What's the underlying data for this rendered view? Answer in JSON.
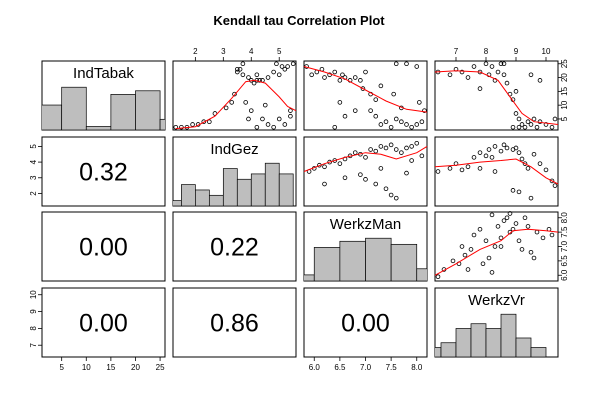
{
  "chart_data": {
    "type": "scatter-matrix",
    "title": "Kendall tau Correlation Plot",
    "variables": [
      {
        "name": "IndTabak",
        "range": [
          1,
          26
        ],
        "ticks": [
          5,
          10,
          15,
          20,
          25
        ],
        "hist": {
          "breaks": [
            0,
            5,
            10,
            15,
            20,
            25,
            30
          ],
          "counts": [
            7,
            12,
            1,
            10,
            11,
            3
          ]
        }
      },
      {
        "name": "IndGez",
        "range": [
          1.2,
          5.6
        ],
        "ticks": [
          2,
          3,
          4,
          5
        ],
        "hist": {
          "breaks": [
            1,
            1.5,
            2,
            2.5,
            3,
            3.5,
            4,
            4.5,
            5,
            5.5,
            6
          ],
          "counts": [
            1,
            4,
            3,
            2,
            7,
            5,
            6,
            8,
            6,
            0
          ]
        }
      },
      {
        "name": "WerkzMan",
        "range": [
          5.8,
          8.2
        ],
        "ticks": [
          6.0,
          6.5,
          7.0,
          7.5,
          8.0
        ],
        "tick_labels": [
          "6.0",
          "6.5",
          "7.0",
          "7.5",
          "8.0"
        ],
        "hist": {
          "breaks": [
            5.5,
            6,
            6.5,
            7,
            7.5,
            8,
            8.5
          ],
          "counts": [
            2,
            11,
            13,
            14,
            12,
            4
          ]
        }
      },
      {
        "name": "WerkzVr",
        "range": [
          6.3,
          10.4
        ],
        "ticks": [
          7,
          8,
          9,
          10
        ],
        "hist": {
          "breaks": [
            6,
            6.5,
            7,
            7.5,
            8,
            8.5,
            9,
            9.5,
            10,
            10.5
          ],
          "counts": [
            2,
            3,
            6,
            7,
            6,
            9,
            4,
            2,
            0
          ]
        }
      }
    ],
    "correlations": [
      {
        "row": 1,
        "col": 0,
        "label": "0.32"
      },
      {
        "row": 2,
        "col": 0,
        "label": "0.00"
      },
      {
        "row": 2,
        "col": 1,
        "label": "0.22"
      },
      {
        "row": 3,
        "col": 0,
        "label": "0.00"
      },
      {
        "row": 3,
        "col": 1,
        "label": "0.86"
      },
      {
        "row": 3,
        "col": 2,
        "label": "0.00"
      }
    ],
    "scatter_panels": [
      {
        "row": 0,
        "col": 1,
        "xvar": "IndGez",
        "yvar": "IndTabak",
        "points": [
          [
            1.3,
            2
          ],
          [
            1.5,
            2
          ],
          [
            1.7,
            2
          ],
          [
            1.9,
            3
          ],
          [
            2.1,
            3
          ],
          [
            2.3,
            4
          ],
          [
            2.5,
            4
          ],
          [
            2.7,
            7
          ],
          [
            3.1,
            9
          ],
          [
            3.3,
            11
          ],
          [
            3.4,
            14
          ],
          [
            3.5,
            22
          ],
          [
            3.5,
            23
          ],
          [
            3.6,
            23
          ],
          [
            3.7,
            21
          ],
          [
            3.7,
            25
          ],
          [
            3.9,
            20
          ],
          [
            4.0,
            19
          ],
          [
            4.1,
            18
          ],
          [
            4.2,
            19
          ],
          [
            4.2,
            21
          ],
          [
            4.3,
            19
          ],
          [
            4.4,
            19
          ],
          [
            4.6,
            20
          ],
          [
            4.8,
            22
          ],
          [
            4.9,
            25
          ],
          [
            5.0,
            21
          ],
          [
            5.1,
            24
          ],
          [
            5.2,
            23
          ],
          [
            5.3,
            24
          ],
          [
            5.4,
            6
          ],
          [
            5.4,
            8
          ],
          [
            4.2,
            2
          ],
          [
            4.4,
            5
          ],
          [
            4.6,
            3
          ],
          [
            4.8,
            2
          ],
          [
            4.0,
            8
          ],
          [
            3.8,
            11
          ],
          [
            5.0,
            5
          ],
          [
            5.2,
            3
          ],
          [
            3.9,
            5
          ],
          [
            4.5,
            10
          ],
          [
            5.5,
            25
          ]
        ],
        "smooth": [
          [
            1.3,
            1.5
          ],
          [
            2.0,
            2.2
          ],
          [
            2.7,
            6
          ],
          [
            3.3,
            12.5
          ],
          [
            3.8,
            18.5
          ],
          [
            4.1,
            19
          ],
          [
            4.5,
            18
          ],
          [
            5.0,
            13
          ],
          [
            5.3,
            9.5
          ],
          [
            5.6,
            8
          ]
        ]
      },
      {
        "row": 0,
        "col": 2,
        "xvar": "WerkzMan",
        "yvar": "IndTabak",
        "points": [
          [
            5.85,
            24
          ],
          [
            5.95,
            21
          ],
          [
            6.05,
            22
          ],
          [
            6.15,
            23
          ],
          [
            6.2,
            20
          ],
          [
            6.3,
            21
          ],
          [
            6.4,
            22
          ],
          [
            6.5,
            19
          ],
          [
            6.55,
            21
          ],
          [
            6.6,
            20
          ],
          [
            6.7,
            19
          ],
          [
            6.8,
            20
          ],
          [
            6.9,
            19
          ],
          [
            7.0,
            22
          ],
          [
            6.95,
            16
          ],
          [
            7.1,
            14
          ],
          [
            7.2,
            12
          ],
          [
            7.3,
            17
          ],
          [
            7.1,
            8
          ],
          [
            7.2,
            6
          ],
          [
            7.3,
            3
          ],
          [
            7.4,
            4
          ],
          [
            7.5,
            2
          ],
          [
            7.6,
            5
          ],
          [
            7.7,
            4
          ],
          [
            7.8,
            3
          ],
          [
            7.9,
            2
          ],
          [
            8.0,
            3
          ],
          [
            8.1,
            4
          ],
          [
            7.6,
            25
          ],
          [
            7.8,
            25
          ],
          [
            8.0,
            24
          ],
          [
            6.8,
            8
          ],
          [
            6.6,
            6
          ],
          [
            6.5,
            11
          ],
          [
            6.4,
            2
          ],
          [
            7.55,
            14
          ],
          [
            7.7,
            9
          ],
          [
            8.05,
            11
          ],
          [
            8.15,
            8
          ]
        ],
        "smooth": [
          [
            5.8,
            24
          ],
          [
            6.2,
            22
          ],
          [
            6.6,
            19.5
          ],
          [
            7.0,
            15.5
          ],
          [
            7.4,
            11.5
          ],
          [
            7.8,
            8.5
          ],
          [
            8.2,
            7.5
          ]
        ]
      },
      {
        "row": 0,
        "col": 3,
        "xvar": "WerkzVr",
        "yvar": "IndTabak",
        "points": [
          [
            6.4,
            22
          ],
          [
            6.8,
            21
          ],
          [
            7.0,
            23
          ],
          [
            7.2,
            22
          ],
          [
            7.4,
            20
          ],
          [
            7.6,
            24
          ],
          [
            7.8,
            22
          ],
          [
            8.0,
            25
          ],
          [
            8.1,
            21
          ],
          [
            8.2,
            24
          ],
          [
            8.3,
            19
          ],
          [
            8.4,
            22
          ],
          [
            8.5,
            25
          ],
          [
            8.6,
            21
          ],
          [
            8.7,
            18
          ],
          [
            8.8,
            14
          ],
          [
            8.9,
            12
          ],
          [
            9.0,
            7
          ],
          [
            9.1,
            5
          ],
          [
            9.2,
            3
          ],
          [
            9.3,
            2
          ],
          [
            9.4,
            4
          ],
          [
            9.5,
            3
          ],
          [
            9.6,
            5
          ],
          [
            9.7,
            2
          ],
          [
            9.8,
            4
          ],
          [
            10.0,
            3
          ],
          [
            10.2,
            2
          ],
          [
            10.3,
            5
          ],
          [
            9.5,
            21
          ],
          [
            9.8,
            19
          ],
          [
            8.9,
            2
          ],
          [
            9.1,
            2
          ],
          [
            8.6,
            25
          ],
          [
            7.8,
            16
          ],
          [
            9.0,
            15
          ]
        ],
        "smooth": [
          [
            6.3,
            22
          ],
          [
            7.0,
            22.5
          ],
          [
            7.8,
            22
          ],
          [
            8.4,
            19
          ],
          [
            8.8,
            13
          ],
          [
            9.2,
            7
          ],
          [
            9.6,
            4
          ],
          [
            10.0,
            3.5
          ],
          [
            10.4,
            3
          ]
        ]
      },
      {
        "row": 1,
        "col": 0,
        "hidden": true
      },
      {
        "row": 1,
        "col": 2,
        "xvar": "WerkzMan",
        "yvar": "IndGez",
        "points": [
          [
            5.9,
            3.4
          ],
          [
            6.0,
            3.6
          ],
          [
            6.1,
            3.8
          ],
          [
            6.2,
            3.7
          ],
          [
            6.3,
            4.0
          ],
          [
            6.4,
            4.1
          ],
          [
            6.5,
            3.9
          ],
          [
            6.6,
            4.2
          ],
          [
            6.7,
            4.4
          ],
          [
            6.8,
            4.6
          ],
          [
            6.9,
            4.5
          ],
          [
            7.0,
            4.3
          ],
          [
            7.1,
            4.8
          ],
          [
            7.2,
            4.7
          ],
          [
            7.3,
            5.0
          ],
          [
            7.4,
            4.9
          ],
          [
            7.5,
            5.1
          ],
          [
            7.6,
            4.8
          ],
          [
            7.7,
            4.6
          ],
          [
            7.8,
            4.9
          ],
          [
            7.9,
            5.0
          ],
          [
            8.0,
            5.2
          ],
          [
            8.1,
            4.4
          ],
          [
            6.9,
            3.2
          ],
          [
            7.0,
            2.9
          ],
          [
            7.2,
            2.6
          ],
          [
            7.4,
            2.3
          ],
          [
            7.5,
            1.9
          ],
          [
            7.6,
            1.7
          ],
          [
            7.3,
            3.6
          ],
          [
            6.6,
            3.0
          ],
          [
            6.2,
            2.6
          ],
          [
            7.8,
            3.3
          ],
          [
            7.9,
            4.1
          ]
        ],
        "smooth": [
          [
            5.8,
            3.4
          ],
          [
            6.2,
            3.9
          ],
          [
            6.6,
            4.3
          ],
          [
            7.0,
            4.6
          ],
          [
            7.3,
            4.5
          ],
          [
            7.6,
            4.2
          ],
          [
            8.0,
            4.6
          ],
          [
            8.2,
            5.0
          ]
        ]
      },
      {
        "row": 1,
        "col": 3,
        "xvar": "WerkzVr",
        "yvar": "IndGez",
        "points": [
          [
            6.4,
            3.4
          ],
          [
            6.8,
            3.6
          ],
          [
            7.0,
            3.9
          ],
          [
            7.2,
            3.5
          ],
          [
            7.4,
            3.7
          ],
          [
            7.6,
            4.3
          ],
          [
            7.8,
            4.6
          ],
          [
            8.0,
            4.4
          ],
          [
            8.1,
            4.8
          ],
          [
            8.2,
            4.3
          ],
          [
            8.3,
            5.0
          ],
          [
            8.5,
            4.7
          ],
          [
            8.6,
            5.1
          ],
          [
            8.7,
            4.9
          ],
          [
            8.9,
            4.8
          ],
          [
            9.0,
            4.9
          ],
          [
            9.1,
            4.6
          ],
          [
            9.2,
            4.2
          ],
          [
            9.3,
            3.9
          ],
          [
            9.4,
            3.6
          ],
          [
            9.6,
            4.5
          ],
          [
            9.8,
            3.9
          ],
          [
            10.0,
            3.5
          ],
          [
            10.2,
            2.8
          ],
          [
            10.3,
            2.5
          ],
          [
            8.9,
            2.2
          ],
          [
            9.1,
            2.1
          ],
          [
            8.3,
            3.4
          ],
          [
            7.8,
            3.6
          ],
          [
            9.5,
            1.7
          ]
        ],
        "smooth": [
          [
            6.3,
            3.7
          ],
          [
            7.0,
            3.8
          ],
          [
            7.8,
            4.0
          ],
          [
            8.5,
            4.1
          ],
          [
            9.0,
            4.2
          ],
          [
            9.5,
            3.7
          ],
          [
            10.0,
            3.0
          ],
          [
            10.4,
            2.6
          ]
        ]
      },
      {
        "row": 2,
        "col": 0,
        "hidden": true
      },
      {
        "row": 2,
        "col": 1,
        "hidden": true
      },
      {
        "row": 2,
        "col": 3,
        "xvar": "WerkzVr",
        "yvar": "WerkzMan",
        "points": [
          [
            6.4,
            5.95
          ],
          [
            6.6,
            6.2
          ],
          [
            6.9,
            6.5
          ],
          [
            7.1,
            6.4
          ],
          [
            7.3,
            6.7
          ],
          [
            7.4,
            6.2
          ],
          [
            7.5,
            6.9
          ],
          [
            7.6,
            7.4
          ],
          [
            7.8,
            7.6
          ],
          [
            8.0,
            7.2
          ],
          [
            8.1,
            6.6
          ],
          [
            8.2,
            6.1
          ],
          [
            8.3,
            7.0
          ],
          [
            8.4,
            7.7
          ],
          [
            8.5,
            7.3
          ],
          [
            8.6,
            7.9
          ],
          [
            8.7,
            8.0
          ],
          [
            8.8,
            7.5
          ],
          [
            8.9,
            7.6
          ],
          [
            9.0,
            7.8
          ],
          [
            9.1,
            7.2
          ],
          [
            9.2,
            6.9
          ],
          [
            9.3,
            8.0
          ],
          [
            9.4,
            7.7
          ],
          [
            9.5,
            6.8
          ],
          [
            9.7,
            7.5
          ],
          [
            9.9,
            7.3
          ],
          [
            10.1,
            7.6
          ],
          [
            10.2,
            7.4
          ],
          [
            7.9,
            6.4
          ],
          [
            8.5,
            7.0
          ],
          [
            8.2,
            8.1
          ],
          [
            8.8,
            8.15
          ],
          [
            9.6,
            6.6
          ],
          [
            7.2,
            7.0
          ]
        ],
        "smooth": [
          [
            6.3,
            6.0
          ],
          [
            7.0,
            6.4
          ],
          [
            7.8,
            6.9
          ],
          [
            8.5,
            7.2
          ],
          [
            8.9,
            7.55
          ],
          [
            9.4,
            7.6
          ],
          [
            10.0,
            7.55
          ],
          [
            10.4,
            7.5
          ]
        ]
      },
      {
        "row": 3,
        "col": 0,
        "hidden": true
      },
      {
        "row": 3,
        "col": 1,
        "hidden": true
      },
      {
        "row": 3,
        "col": 2,
        "hidden": true
      }
    ]
  }
}
